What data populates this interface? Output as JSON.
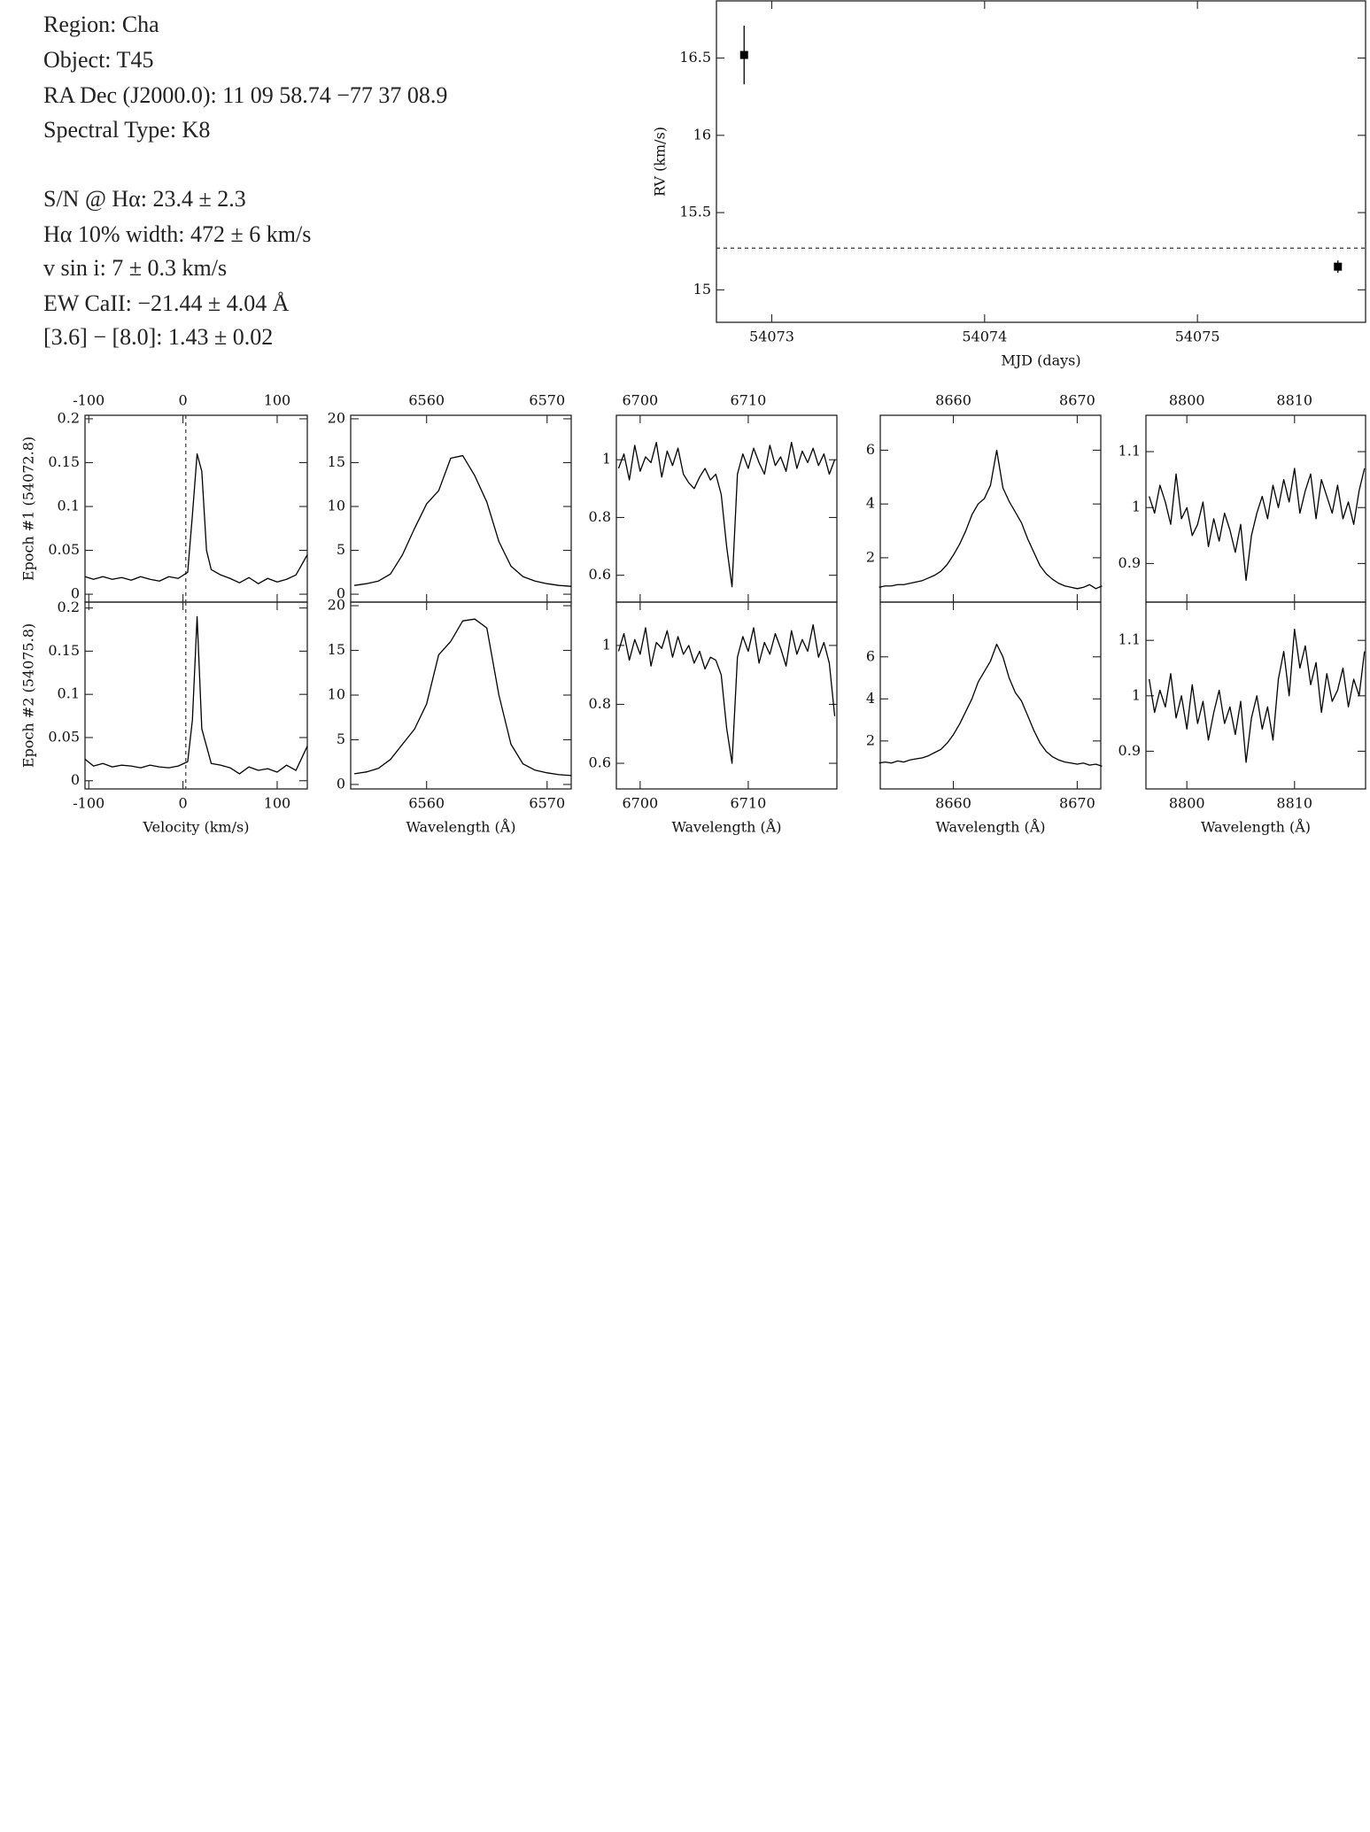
{
  "header": {
    "lines": [
      "Region: Cha",
      "Object: T45",
      "RA Dec (J2000.0): 11 09 58.74 −77 37 08.9",
      "Spectral Type: K8"
    ]
  },
  "measurements": {
    "lines": [
      "S/N @ Hα: 23.4 ± 2.3",
      "Hα 10% width: 472 ± 6 km/s",
      "v sin i: 7 ± 0.3 km/s",
      "EW CaII: −21.44 ± 4.04 Å",
      "[3.6] − [8.0]: 1.43 ± 0.02"
    ]
  },
  "chart_data": [
    {
      "type": "scatter",
      "xlabel": "MJD (days)",
      "ylabel": "RV (km/s)",
      "x": [
        54072.87,
        54075.66
      ],
      "values": [
        16.52,
        15.15
      ],
      "errors": [
        0.19,
        0.04
      ],
      "hline": 15.27,
      "xlim": [
        54072.74,
        54075.79
      ],
      "ylim": [
        14.79,
        16.87
      ],
      "xticks": [
        54073,
        54074,
        54075
      ],
      "yticks": [
        15,
        15.5,
        16,
        16.5
      ],
      "color": "#000000"
    },
    {
      "type": "line",
      "ylabel": "Epoch #1 (54072.8)",
      "vline": 3,
      "x": [
        -104,
        -95,
        -85,
        -75,
        -65,
        -55,
        -45,
        -35,
        -25,
        -15,
        -5,
        5,
        10,
        15,
        20,
        25,
        30,
        40,
        50,
        60,
        70,
        80,
        90,
        100,
        110,
        120,
        132
      ],
      "values": [
        0.02,
        0.017,
        0.02,
        0.017,
        0.019,
        0.016,
        0.02,
        0.017,
        0.015,
        0.02,
        0.018,
        0.025,
        0.09,
        0.16,
        0.14,
        0.05,
        0.028,
        0.022,
        0.018,
        0.013,
        0.019,
        0.012,
        0.018,
        0.014,
        0.017,
        0.022,
        0.045
      ],
      "xlim": [
        -104,
        132
      ],
      "ylim": [
        -0.009,
        0.204
      ],
      "xticks": [
        -100,
        0,
        100
      ],
      "yticks": [
        0,
        0.05,
        0.1,
        0.15,
        0.2
      ],
      "color": "#000000"
    },
    {
      "type": "line",
      "x": [
        6554,
        6555,
        6556,
        6557,
        6558,
        6559,
        6560,
        6561,
        6562,
        6563,
        6564,
        6565,
        6566,
        6567,
        6568,
        6569,
        6570,
        6571,
        6572
      ],
      "values": [
        1.0,
        1.2,
        1.5,
        2.3,
        4.5,
        7.5,
        10.3,
        11.8,
        15.5,
        15.8,
        13.5,
        10.5,
        6.0,
        3.2,
        2.0,
        1.5,
        1.2,
        1.0,
        0.9
      ],
      "xlim": [
        6553.7,
        6572
      ],
      "ylim": [
        -0.9,
        20.4
      ],
      "xticks": [
        6560,
        6570
      ],
      "yticks": [
        0,
        5,
        10,
        15,
        20
      ],
      "color": "#000000"
    },
    {
      "type": "line",
      "x": [
        6698,
        6698.5,
        6699,
        6699.5,
        6700,
        6700.5,
        6701,
        6701.5,
        6702,
        6702.5,
        6703,
        6703.5,
        6704,
        6704.5,
        6705,
        6705.5,
        6706,
        6706.5,
        6707,
        6707.5,
        6708,
        6708.5,
        6709,
        6709.5,
        6710,
        6710.5,
        6711,
        6711.5,
        6712,
        6712.5,
        6713,
        6713.5,
        6714,
        6714.5,
        6715,
        6715.5,
        6716,
        6716.5,
        6717,
        6717.5,
        6718
      ],
      "values": [
        0.97,
        1.02,
        0.93,
        1.05,
        0.96,
        1.01,
        0.99,
        1.06,
        0.94,
        1.03,
        0.98,
        1.04,
        0.95,
        0.92,
        0.9,
        0.94,
        0.97,
        0.93,
        0.95,
        0.88,
        0.7,
        0.56,
        0.95,
        1.02,
        0.97,
        1.04,
        0.99,
        0.95,
        1.05,
        0.98,
        1.01,
        0.96,
        1.06,
        0.97,
        1.03,
        0.99,
        1.04,
        0.98,
        1.02,
        0.95,
        1.0
      ],
      "xlim": [
        6697.8,
        6718.2
      ],
      "ylim": [
        0.507,
        1.154
      ],
      "xticks": [
        6700,
        6710
      ],
      "yticks": [
        0.6,
        0.8,
        1
      ],
      "color": "#000000"
    },
    {
      "type": "line",
      "x": [
        8654,
        8654.5,
        8655,
        8655.5,
        8656,
        8656.5,
        8657,
        8657.5,
        8658,
        8658.5,
        8659,
        8659.5,
        8660,
        8660.5,
        8661,
        8661.5,
        8662,
        8662.5,
        8663,
        8663.5,
        8664,
        8664.5,
        8665,
        8665.5,
        8666,
        8666.5,
        8667,
        8667.5,
        8668,
        8668.5,
        8669,
        8669.5,
        8670,
        8670.5,
        8671,
        8671.5,
        8672
      ],
      "values": [
        0.9,
        0.95,
        0.95,
        1.0,
        1.0,
        1.05,
        1.1,
        1.15,
        1.25,
        1.35,
        1.5,
        1.75,
        2.1,
        2.5,
        3.0,
        3.6,
        4.0,
        4.2,
        4.7,
        6.0,
        4.6,
        4.1,
        3.7,
        3.3,
        2.7,
        2.2,
        1.7,
        1.4,
        1.2,
        1.05,
        0.95,
        0.9,
        0.85,
        0.9,
        1.0,
        0.85,
        0.95
      ],
      "xlim": [
        8654.1,
        8671.9
      ],
      "ylim": [
        0.35,
        7.3
      ],
      "xticks": [
        8660,
        8670
      ],
      "yticks": [
        2,
        4,
        6
      ],
      "color": "#000000"
    },
    {
      "type": "line",
      "x": [
        8796.5,
        8797,
        8797.5,
        8798,
        8798.5,
        8799,
        8799.5,
        8800,
        8800.5,
        8801,
        8801.5,
        8802,
        8802.5,
        8803,
        8803.5,
        8804,
        8804.5,
        8805,
        8805.5,
        8806,
        8806.5,
        8807,
        8807.5,
        8808,
        8808.5,
        8809,
        8809.5,
        8810,
        8810.5,
        8811,
        8811.5,
        8812,
        8812.5,
        8813,
        8813.5,
        8814,
        8814.5,
        8815,
        8815.5,
        8816,
        8816.5
      ],
      "values": [
        1.02,
        0.99,
        1.04,
        1.01,
        0.97,
        1.06,
        0.98,
        1.0,
        0.95,
        0.97,
        1.01,
        0.93,
        0.98,
        0.94,
        0.99,
        0.96,
        0.92,
        0.97,
        0.87,
        0.95,
        0.99,
        1.02,
        0.98,
        1.04,
        1.0,
        1.05,
        1.01,
        1.07,
        0.99,
        1.03,
        1.06,
        0.98,
        1.05,
        1.02,
        0.99,
        1.04,
        0.98,
        1.01,
        0.97,
        1.03,
        1.07
      ],
      "xlim": [
        8796.2,
        8816.6
      ],
      "ylim": [
        0.831,
        1.165
      ],
      "xticks": [
        8800,
        8810
      ],
      "yticks": [
        0.9,
        1,
        1.1
      ],
      "color": "#000000"
    },
    {
      "type": "line",
      "ylabel": "Epoch #2 (54075.8)",
      "xlabel": "Velocity (km/s)",
      "vline": 3,
      "x": [
        -104,
        -95,
        -85,
        -75,
        -65,
        -55,
        -45,
        -35,
        -25,
        -15,
        -5,
        5,
        10,
        15,
        20,
        25,
        30,
        40,
        50,
        60,
        70,
        80,
        90,
        100,
        110,
        120,
        132
      ],
      "values": [
        0.025,
        0.017,
        0.02,
        0.016,
        0.018,
        0.017,
        0.015,
        0.018,
        0.016,
        0.015,
        0.017,
        0.022,
        0.07,
        0.19,
        0.06,
        0.04,
        0.02,
        0.018,
        0.015,
        0.008,
        0.016,
        0.012,
        0.014,
        0.01,
        0.018,
        0.012,
        0.04
      ],
      "xlim": [
        -104,
        132
      ],
      "ylim": [
        -0.0095,
        0.2068
      ],
      "xticks": [
        -100,
        0,
        100
      ],
      "yticks": [
        0,
        0.05,
        0.1,
        0.15,
        0.2
      ],
      "color": "#000000"
    },
    {
      "type": "line",
      "xlabel": "Wavelength (Å)",
      "x": [
        6554,
        6555,
        6556,
        6557,
        6558,
        6559,
        6560,
        6561,
        6562,
        6563,
        6564,
        6565,
        6566,
        6567,
        6568,
        6569,
        6570,
        6571,
        6572
      ],
      "values": [
        1.2,
        1.4,
        1.8,
        2.8,
        4.5,
        6.2,
        9.0,
        14.5,
        16,
        18.3,
        18.5,
        17.5,
        10,
        4.5,
        2.3,
        1.6,
        1.3,
        1.1,
        1.0
      ],
      "xlim": [
        6553.7,
        6572
      ],
      "ylim": [
        -0.5,
        20.4
      ],
      "xticks": [
        6560,
        6570
      ],
      "yticks": [
        0,
        5,
        10,
        15,
        20
      ],
      "color": "#000000"
    },
    {
      "type": "line",
      "xlabel": "Wavelength (Å)",
      "x": [
        6698,
        6698.5,
        6699,
        6699.5,
        6700,
        6700.5,
        6701,
        6701.5,
        6702,
        6702.5,
        6703,
        6703.5,
        6704,
        6704.5,
        6705,
        6705.5,
        6706,
        6706.5,
        6707,
        6707.5,
        6708,
        6708.5,
        6709,
        6709.5,
        6710,
        6710.5,
        6711,
        6711.5,
        6712,
        6712.5,
        6713,
        6713.5,
        6714,
        6714.5,
        6715,
        6715.5,
        6716,
        6716.5,
        6717,
        6717.5,
        6718
      ],
      "values": [
        0.98,
        1.04,
        0.95,
        1.02,
        0.97,
        1.06,
        0.93,
        1.01,
        0.99,
        1.05,
        0.96,
        1.03,
        0.97,
        1.0,
        0.94,
        0.98,
        0.92,
        0.96,
        0.95,
        0.9,
        0.72,
        0.6,
        0.96,
        1.03,
        0.98,
        1.06,
        0.94,
        1.01,
        0.97,
        1.04,
        0.99,
        0.93,
        1.05,
        0.97,
        1.02,
        0.98,
        1.07,
        0.96,
        1.01,
        0.94,
        0.76
      ],
      "xlim": [
        6697.8,
        6718.2
      ],
      "ylim": [
        0.513,
        1.147
      ],
      "xticks": [
        6700,
        6710
      ],
      "yticks": [
        0.6,
        0.8,
        1
      ],
      "color": "#000000"
    },
    {
      "type": "line",
      "xlabel": "Wavelength (Å)",
      "x": [
        8654,
        8654.5,
        8655,
        8655.5,
        8656,
        8656.5,
        8657,
        8657.5,
        8658,
        8658.5,
        8659,
        8659.5,
        8660,
        8660.5,
        8661,
        8661.5,
        8662,
        8662.5,
        8663,
        8663.5,
        8664,
        8664.5,
        8665,
        8665.5,
        8666,
        8666.5,
        8667,
        8667.5,
        8668,
        8668.5,
        8669,
        8669.5,
        8670,
        8670.5,
        8671,
        8671.5,
        8672
      ],
      "values": [
        0.95,
        1.0,
        0.95,
        1.05,
        1.0,
        1.1,
        1.15,
        1.2,
        1.3,
        1.45,
        1.6,
        1.9,
        2.3,
        2.8,
        3.4,
        4.0,
        4.8,
        5.3,
        5.8,
        6.6,
        6.0,
        5.0,
        4.3,
        3.9,
        3.2,
        2.5,
        1.9,
        1.5,
        1.25,
        1.1,
        1.0,
        0.95,
        0.9,
        0.95,
        0.85,
        0.9,
        0.8
      ],
      "xlim": [
        8654.1,
        8671.9
      ],
      "ylim": [
        -0.28,
        8.6
      ],
      "xticks": [
        8660,
        8670
      ],
      "yticks": [
        2,
        4,
        6
      ],
      "color": "#000000"
    },
    {
      "type": "line",
      "xlabel": "Wavelength (Å)",
      "x": [
        8796.5,
        8797,
        8797.5,
        8798,
        8798.5,
        8799,
        8799.5,
        8800,
        8800.5,
        8801,
        8801.5,
        8802,
        8802.5,
        8803,
        8803.5,
        8804,
        8804.5,
        8805,
        8805.5,
        8806,
        8806.5,
        8807,
        8807.5,
        8808,
        8808.5,
        8809,
        8809.5,
        8810,
        8810.5,
        8811,
        8811.5,
        8812,
        8812.5,
        8813,
        8813.5,
        8814,
        8814.5,
        8815,
        8815.5,
        8816,
        8816.5
      ],
      "values": [
        1.03,
        0.97,
        1.01,
        0.98,
        1.04,
        0.96,
        1.0,
        0.94,
        1.02,
        0.95,
        0.99,
        0.92,
        0.97,
        1.01,
        0.95,
        0.98,
        0.93,
        0.99,
        0.88,
        0.96,
        1.0,
        0.94,
        0.98,
        0.92,
        1.03,
        1.08,
        1.0,
        1.12,
        1.05,
        1.09,
        1.02,
        1.06,
        0.97,
        1.04,
        0.99,
        1.01,
        1.05,
        0.98,
        1.03,
        1.0,
        1.08
      ],
      "xlim": [
        8796.2,
        8816.6
      ],
      "ylim": [
        0.832,
        1.169
      ],
      "xticks": [
        8800,
        8810
      ],
      "yticks": [
        0.9,
        1,
        1.1
      ],
      "color": "#000000"
    }
  ]
}
